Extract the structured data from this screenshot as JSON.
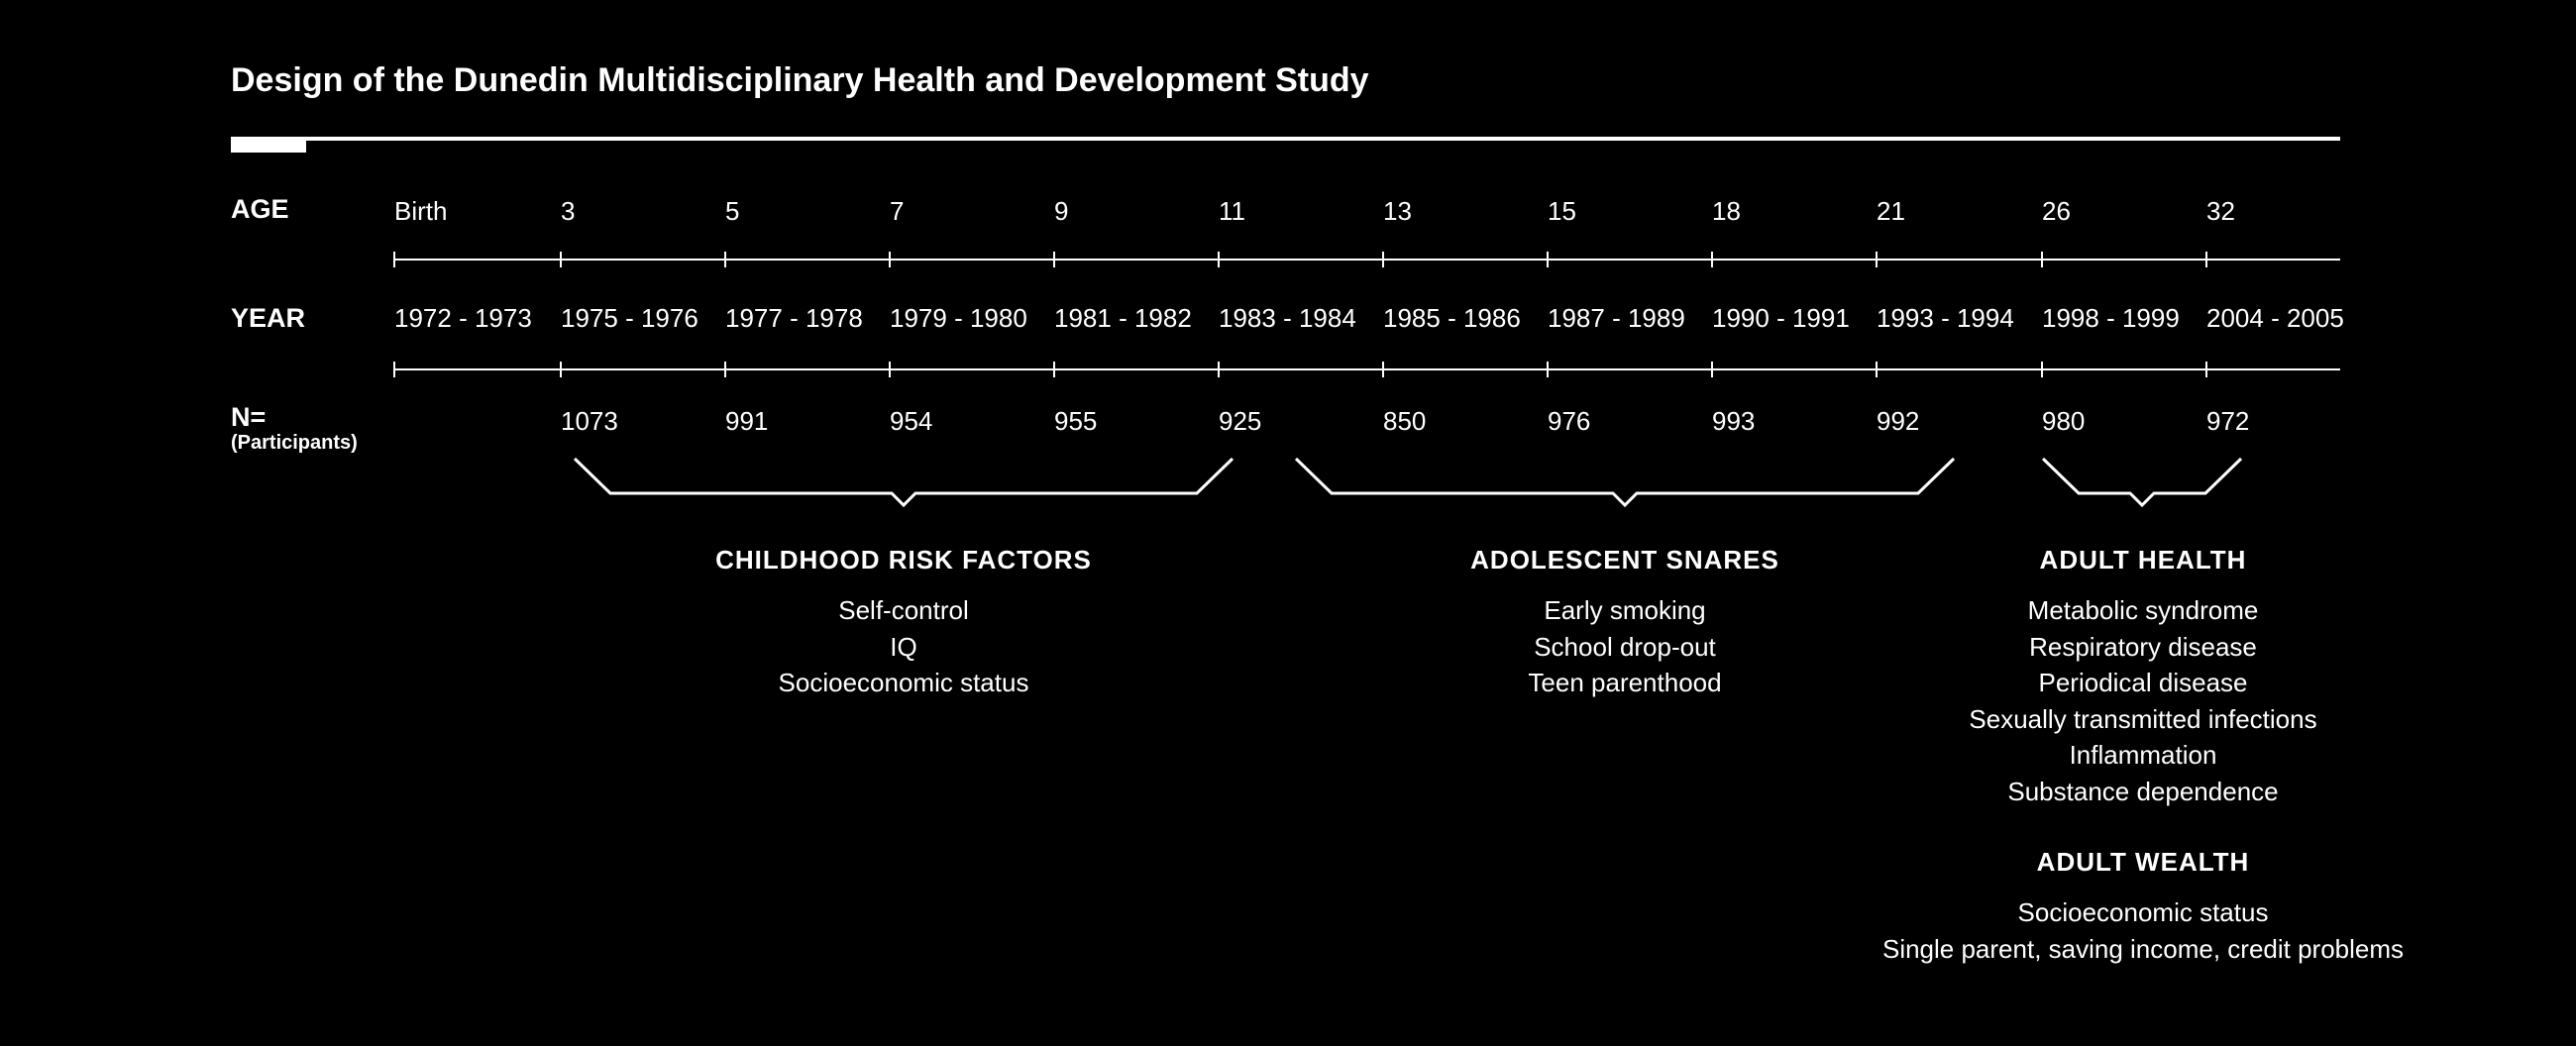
{
  "title": "Design of the Dunedin Multidisciplinary Health and Development Study",
  "row_labels": {
    "age": "AGE",
    "year": "YEAR",
    "n": "N=",
    "n_sub": "(Participants)"
  },
  "waves": [
    {
      "age": "Birth",
      "year": "1972 - 1973",
      "n": ""
    },
    {
      "age": "3",
      "year": "1975 - 1976",
      "n": "1073"
    },
    {
      "age": "5",
      "year": "1977 - 1978",
      "n": "991"
    },
    {
      "age": "7",
      "year": "1979 - 1980",
      "n": "954"
    },
    {
      "age": "9",
      "year": "1981 - 1982",
      "n": "955"
    },
    {
      "age": "11",
      "year": "1983 - 1984",
      "n": "925"
    },
    {
      "age": "13",
      "year": "1985 - 1986",
      "n": "850"
    },
    {
      "age": "15",
      "year": "1987 - 1989",
      "n": "976"
    },
    {
      "age": "18",
      "year": "1990 - 1991",
      "n": "993"
    },
    {
      "age": "21",
      "year": "1993 - 1994",
      "n": "992"
    },
    {
      "age": "26",
      "year": "1998 - 1999",
      "n": "980"
    },
    {
      "age": "32",
      "year": "2004 - 2005",
      "n": "972"
    }
  ],
  "groups": [
    {
      "title": "CHILDHOOD RISK FACTORS",
      "items": [
        "Self-control",
        "IQ",
        "Socioeconomic status"
      ]
    },
    {
      "title": "ADOLESCENT SNARES",
      "items": [
        "Early smoking",
        "School drop-out",
        "Teen parenthood"
      ]
    },
    {
      "title": "ADULT HEALTH",
      "items": [
        "Metabolic syndrome",
        "Respiratory disease",
        "Periodical disease",
        "Sexually transmitted infections",
        "Inflammation",
        "Substance dependence"
      ]
    },
    {
      "title": "ADULT WEALTH",
      "items": [
        "Socioeconomic status",
        "Single parent, saving income, credit problems"
      ]
    }
  ]
}
